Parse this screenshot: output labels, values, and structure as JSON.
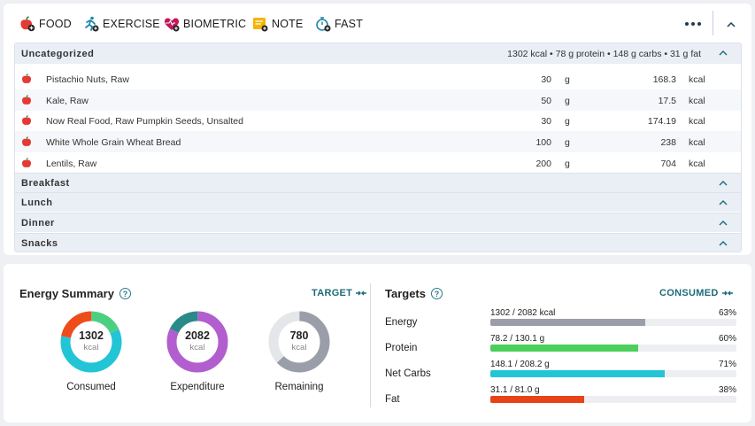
{
  "toolbar": {
    "items": [
      {
        "label": "FOOD",
        "icon": "apple-add-icon",
        "color": "#e53935"
      },
      {
        "label": "EXERCISE",
        "icon": "runner-add-icon",
        "color": "#1e88a8"
      },
      {
        "label": "BIOMETRIC",
        "icon": "heart-pulse-add-icon",
        "color": "#c2185b"
      },
      {
        "label": "NOTE",
        "icon": "note-add-icon",
        "color": "#f5b400"
      },
      {
        "label": "FAST",
        "icon": "stopwatch-add-icon",
        "color": "#1e88a8"
      }
    ]
  },
  "diary": {
    "uncategorized": {
      "name": "Uncategorized",
      "summary": "1302 kcal • 78 g protein • 148 g carbs • 31 g fat",
      "foods": [
        {
          "name": "Pistachio Nuts, Raw",
          "amount": "30",
          "unit": "g",
          "kcal": "168.3",
          "kcal_unit": "kcal"
        },
        {
          "name": "Kale, Raw",
          "amount": "50",
          "unit": "g",
          "kcal": "17.5",
          "kcal_unit": "kcal"
        },
        {
          "name": "Now Real Food, Raw Pumpkin Seeds, Unsalted",
          "amount": "30",
          "unit": "g",
          "kcal": "174.19",
          "kcal_unit": "kcal"
        },
        {
          "name": "White Whole Grain Wheat Bread",
          "amount": "100",
          "unit": "g",
          "kcal": "238",
          "kcal_unit": "kcal"
        },
        {
          "name": "Lentils, Raw",
          "amount": "200",
          "unit": "g",
          "kcal": "704",
          "kcal_unit": "kcal"
        }
      ]
    },
    "meals": [
      "Breakfast",
      "Lunch",
      "Dinner",
      "Snacks"
    ]
  },
  "energy_summary": {
    "title": "Energy Summary",
    "help": "?",
    "toggle": "TARGET",
    "rings": [
      {
        "value": "1302",
        "unit": "kcal",
        "label": "Consumed",
        "segments": [
          {
            "color": "#4ccf80",
            "fraction": 0.18
          },
          {
            "color": "#22c5d6",
            "fraction": 0.6
          },
          {
            "color": "#ee4c1a",
            "fraction": 0.22
          }
        ]
      },
      {
        "value": "2082",
        "unit": "kcal",
        "label": "Expenditure",
        "segments": [
          {
            "color": "#b25ecf",
            "fraction": 0.82
          },
          {
            "color": "#2a8a8a",
            "fraction": 0.18
          }
        ]
      },
      {
        "value": "780",
        "unit": "kcal",
        "label": "Remaining",
        "segments": [
          {
            "color": "#9a9ea8",
            "fraction": 0.63
          },
          {
            "color": "#e4e6ea",
            "fraction": 0.37
          }
        ]
      }
    ]
  },
  "targets": {
    "title": "Targets",
    "help": "?",
    "toggle": "CONSUMED",
    "rows": [
      {
        "name": "Energy",
        "value": "1302 / 2082 kcal",
        "percent_label": "63%",
        "fraction": 0.63,
        "color": "#9a9ea8"
      },
      {
        "name": "Protein",
        "value": "78.2 / 130.1 g",
        "percent_label": "60%",
        "fraction": 0.6,
        "color": "#4ccf5a"
      },
      {
        "name": "Net Carbs",
        "value": "148.1 / 208.2 g",
        "percent_label": "71%",
        "fraction": 0.71,
        "color": "#22c5d6"
      },
      {
        "name": "Fat",
        "value": "31.1 / 81.0 g",
        "percent_label": "38%",
        "fraction": 0.38,
        "color": "#e8421a"
      }
    ]
  }
}
